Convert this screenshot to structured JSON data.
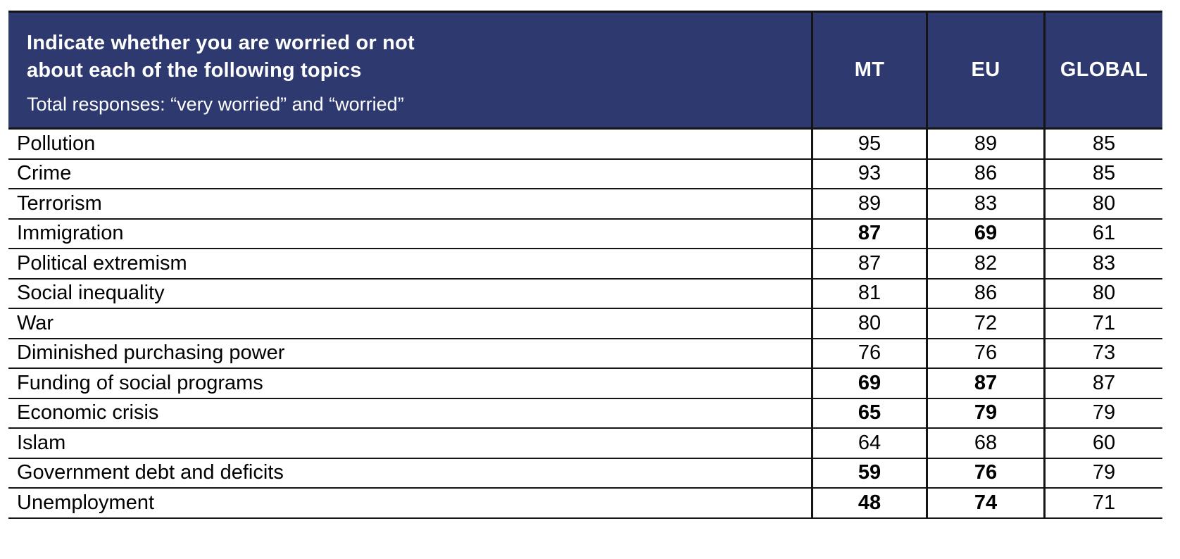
{
  "colors": {
    "header_bg": "#2d396f",
    "header_text": "#ffffff",
    "border": "#141414",
    "body_bg": "#ffffff",
    "text": "#000000"
  },
  "header": {
    "title_line1": "Indicate whether you are worried or not",
    "title_line2": "about each of the following topics",
    "subtitle": "Total responses: “very worried” and “worried”",
    "columns": [
      "MT",
      "EU",
      "GLOBAL"
    ]
  },
  "rows": [
    {
      "label": "Pollution",
      "values": [
        "95",
        "89",
        "85"
      ],
      "bold": [
        false,
        false,
        false
      ]
    },
    {
      "label": "Crime",
      "values": [
        "93",
        "86",
        "85"
      ],
      "bold": [
        false,
        false,
        false
      ]
    },
    {
      "label": "Terrorism",
      "values": [
        "89",
        "83",
        "80"
      ],
      "bold": [
        false,
        false,
        false
      ]
    },
    {
      "label": "Immigration",
      "values": [
        "87",
        "69",
        "61"
      ],
      "bold": [
        true,
        true,
        false
      ]
    },
    {
      "label": "Political extremism",
      "values": [
        "87",
        "82",
        "83"
      ],
      "bold": [
        false,
        false,
        false
      ]
    },
    {
      "label": "Social inequality",
      "values": [
        "81",
        "86",
        "80"
      ],
      "bold": [
        false,
        false,
        false
      ]
    },
    {
      "label": "War",
      "values": [
        "80",
        "72",
        "71"
      ],
      "bold": [
        false,
        false,
        false
      ]
    },
    {
      "label": "Diminished purchasing power",
      "values": [
        "76",
        "76",
        "73"
      ],
      "bold": [
        false,
        false,
        false
      ]
    },
    {
      "label": "Funding of social programs",
      "values": [
        "69",
        "87",
        "87"
      ],
      "bold": [
        true,
        true,
        false
      ]
    },
    {
      "label": "Economic crisis",
      "values": [
        "65",
        "79",
        "79"
      ],
      "bold": [
        true,
        true,
        false
      ]
    },
    {
      "label": "Islam",
      "values": [
        "64",
        "68",
        "60"
      ],
      "bold": [
        false,
        false,
        false
      ]
    },
    {
      "label": "Government debt and deficits",
      "values": [
        "59",
        "76",
        "79"
      ],
      "bold": [
        true,
        true,
        false
      ]
    },
    {
      "label": "Unemployment",
      "values": [
        "48",
        "74",
        "71"
      ],
      "bold": [
        true,
        true,
        false
      ]
    }
  ],
  "chart_data": {
    "type": "table",
    "title": "Indicate whether you are worried or not about each of the following topics",
    "subtitle": "Total responses: “very worried” and “worried”",
    "columns": [
      "MT",
      "EU",
      "GLOBAL"
    ],
    "categories": [
      "Pollution",
      "Crime",
      "Terrorism",
      "Immigration",
      "Political extremism",
      "Social inequality",
      "War",
      "Diminished purchasing power",
      "Funding of social programs",
      "Economic crisis",
      "Islam",
      "Government debt and deficits",
      "Unemployment"
    ],
    "series": [
      {
        "name": "MT",
        "values": [
          95,
          93,
          89,
          87,
          87,
          81,
          80,
          76,
          69,
          65,
          64,
          59,
          48
        ]
      },
      {
        "name": "EU",
        "values": [
          89,
          86,
          83,
          69,
          82,
          86,
          72,
          76,
          87,
          79,
          68,
          76,
          74
        ]
      },
      {
        "name": "GLOBAL",
        "values": [
          85,
          85,
          80,
          61,
          83,
          80,
          71,
          73,
          87,
          79,
          60,
          79,
          71
        ]
      }
    ],
    "bold_emphasis_rows": [
      "Immigration",
      "Funding of social programs",
      "Economic crisis",
      "Government debt and deficits",
      "Unemployment"
    ],
    "bold_emphasis_columns": [
      "MT",
      "EU"
    ]
  }
}
